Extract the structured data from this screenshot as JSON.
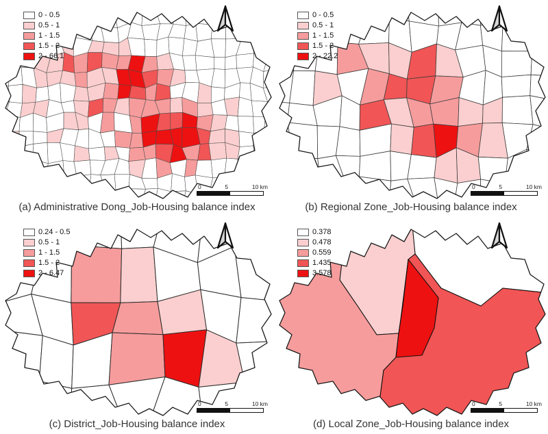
{
  "figure": {
    "title_visible": false
  },
  "colors": {
    "class_ramp": [
      "#ffffff",
      "#fbcfcf",
      "#f69c9c",
      "#f15555",
      "#ee1111"
    ],
    "region_border": "#4a4a4a",
    "outline": "#1a1a1a"
  },
  "panels": [
    {
      "id": "a",
      "caption": "(a) Administrative Dong_Job-Housing balance index",
      "legend": [
        {
          "label": "0 - 0.5",
          "color": "#ffffff"
        },
        {
          "label": "0.5 - 1",
          "color": "#fbcfcf"
        },
        {
          "label": "1 - 1.5",
          "color": "#f69c9c"
        },
        {
          "label": "1.5 - 2",
          "color": "#f15555"
        },
        {
          "label": "2 - 66.1",
          "color": "#ee1111"
        }
      ],
      "scalebar": [
        "0",
        "5",
        "10 km"
      ],
      "map": {
        "kind": "grid",
        "cols": 21,
        "rows": 14,
        "seed": 11,
        "noise": 1.05,
        "cellStroke": "#4a4a4a",
        "strokeW": 0.55
      }
    },
    {
      "id": "b",
      "caption": "(b) Regional Zone_Job-Housing balance index",
      "legend": [
        {
          "label": "0 - 0.5",
          "color": "#ffffff"
        },
        {
          "label": "0.5 - 1",
          "color": "#fbcfcf"
        },
        {
          "label": "1 - 1.5",
          "color": "#f69c9c"
        },
        {
          "label": "1.5 - 2",
          "color": "#f15555"
        },
        {
          "label": "2 - 22.2",
          "color": "#ee1111"
        }
      ],
      "scalebar": [
        "0",
        "5",
        "10 km"
      ],
      "map": {
        "kind": "grid",
        "cols": 12,
        "rows": 8,
        "seed": 23,
        "noise": 0.95,
        "cellStroke": "#3d3d3d",
        "strokeW": 0.8
      }
    },
    {
      "id": "c",
      "caption": "(c) District_Job-Housing balance index",
      "legend": [
        {
          "label": "0.24 - 0.5",
          "color": "#ffffff"
        },
        {
          "label": "0.5 - 1",
          "color": "#fbcfcf"
        },
        {
          "label": "1 - 1.5",
          "color": "#f69c9c"
        },
        {
          "label": "1.5 - 2",
          "color": "#f15555"
        },
        {
          "label": "2 - 6.47",
          "color": "#ee1111"
        }
      ],
      "scalebar": [
        "0",
        "5",
        "10 km"
      ],
      "map": {
        "kind": "grid",
        "cols": 7,
        "rows": 5,
        "seed": 5,
        "noise": 0.7,
        "cellStroke": "#2b2b2b",
        "strokeW": 1.0
      }
    },
    {
      "id": "d",
      "caption": "(d) Local Zone_Job-Housing balance index",
      "legend": [
        {
          "label": "0.378",
          "color": "#ffffff"
        },
        {
          "label": "0.478",
          "color": "#fbcfcf"
        },
        {
          "label": "0.559",
          "color": "#f69c9c"
        },
        {
          "label": "1.435",
          "color": "#f15555"
        },
        {
          "label": "3.578",
          "color": "#ee1111"
        }
      ],
      "scalebar": [
        "0",
        "5",
        "10 km"
      ],
      "map": {
        "kind": "zones",
        "zoneStroke": "#111111",
        "strokeW": 1.1
      }
    }
  ]
}
